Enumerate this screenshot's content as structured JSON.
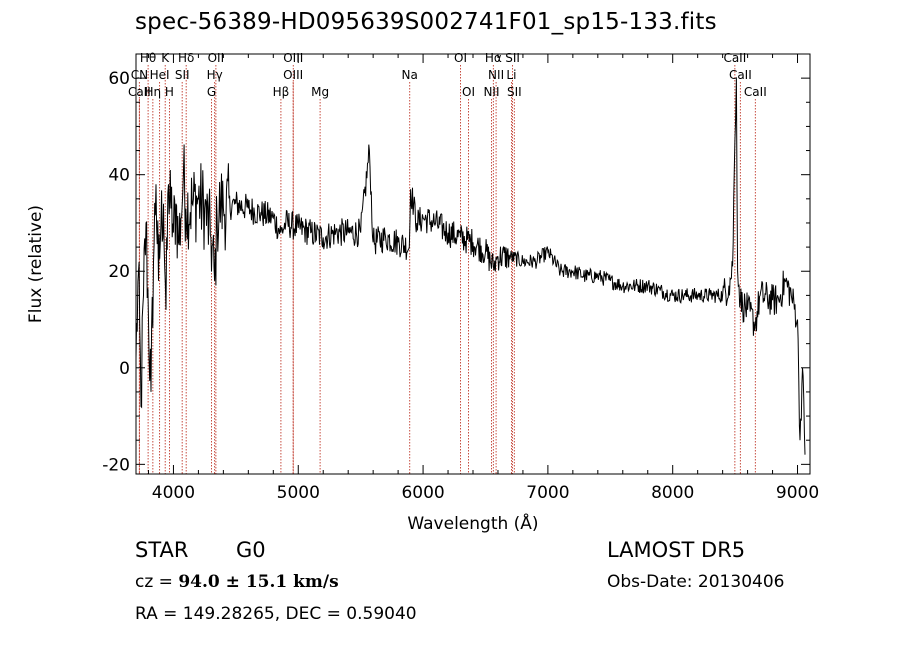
{
  "header": {
    "title": "spec-56389-HD095639S002741F01_sp15-133.fits"
  },
  "footer": {
    "object_class": "STAR",
    "subclass": "G0",
    "survey": "LAMOST DR5",
    "cz_prefix": "cz = ",
    "cz_value": "94.0 ± 15.1 km/s",
    "obs_date": "Obs-Date: 20130406",
    "radec": "RA = 149.28265, DEC =   0.59040"
  },
  "colors": {
    "line": "#000000",
    "marker": "#c0392b",
    "background": "#ffffff"
  },
  "chart_data": {
    "type": "line",
    "title": "spec-56389-HD095639S002741F01_sp15-133.fits",
    "xlabel": "Wavelength (Å)",
    "ylabel": "Flux (relative)",
    "xlim": [
      3700,
      9100
    ],
    "ylim": [
      -22,
      65
    ],
    "xticks": [
      4000,
      5000,
      6000,
      7000,
      8000,
      9000
    ],
    "yticks": [
      -20,
      0,
      20,
      40,
      60
    ],
    "grid": false,
    "series": [
      {
        "x": [
          3700,
          3720,
          3740,
          3760,
          3780,
          3800,
          3820,
          3840,
          3860,
          3880,
          3900,
          3920,
          3940,
          3960,
          3980,
          4000,
          4020,
          4040,
          4060,
          4080,
          4100,
          4150,
          4200,
          4250,
          4300,
          4330,
          4350,
          4380,
          4400,
          4500,
          4600,
          4700,
          4800,
          4861,
          4900,
          5000,
          5100,
          5200,
          5300,
          5400,
          5500,
          5570,
          5600,
          5700,
          5800,
          5890,
          5900,
          5950,
          6000,
          6100,
          6200,
          6300,
          6400,
          6500,
          6563,
          6600,
          6700,
          6800,
          6900,
          7000,
          7100,
          7200,
          7300,
          7400,
          7500,
          7600,
          7700,
          7800,
          7900,
          8000,
          8100,
          8200,
          8300,
          8400,
          8450,
          8480,
          8498,
          8510,
          8520,
          8542,
          8560,
          8600,
          8662,
          8700,
          8800,
          8850,
          8900,
          8950,
          9000,
          9020,
          9040,
          9060
        ],
        "y": [
          2,
          20,
          -8,
          15,
          30,
          10,
          -5,
          22,
          38,
          18,
          30,
          34,
          12,
          38,
          33,
          28,
          34,
          26,
          31,
          40,
          33,
          34,
          35,
          33,
          27,
          18,
          31,
          34,
          33,
          34,
          33,
          32,
          31,
          28,
          30,
          29,
          28,
          27,
          28,
          28,
          28,
          45,
          26,
          27,
          26,
          25,
          37,
          30,
          31,
          30,
          28,
          27,
          26,
          24,
          21,
          23,
          23,
          22,
          22,
          24,
          20,
          20,
          19,
          19,
          18,
          17,
          17,
          17,
          16,
          15,
          15,
          15,
          15,
          15,
          17,
          21,
          47,
          60,
          20,
          14,
          13,
          12,
          9,
          15,
          14,
          14,
          18,
          15,
          10,
          -15,
          0,
          -18
        ]
      }
    ],
    "lines": [
      {
        "label": "Hθ",
        "w": 3797,
        "row": 0
      },
      {
        "label": "K",
        "w": 3934,
        "row": 0
      },
      {
        "label": "Hδ",
        "w": 4102,
        "row": 0
      },
      {
        "label": "OII",
        "w": 4340,
        "row": 0
      },
      {
        "label": "OIII",
        "w": 4960,
        "row": 0
      },
      {
        "label": "OI",
        "w": 6300,
        "row": 0
      },
      {
        "label": "Hα",
        "w": 6563,
        "row": 0
      },
      {
        "label": "SII",
        "w": 6717,
        "row": 0
      },
      {
        "label": "CaII",
        "w": 8498,
        "row": 0
      },
      {
        "label": "CN",
        "w": 3727,
        "row": 1
      },
      {
        "label": "HeI",
        "w": 3889,
        "row": 1
      },
      {
        "label": "SII",
        "w": 4070,
        "row": 1
      },
      {
        "label": "Hγ",
        "w": 4330,
        "row": 1
      },
      {
        "label": "OIII",
        "w": 4959,
        "row": 1
      },
      {
        "label": "Na",
        "w": 5893,
        "row": 1
      },
      {
        "label": "NII",
        "w": 6585,
        "row": 1
      },
      {
        "label": "Li",
        "w": 6708,
        "row": 1
      },
      {
        "label": "CaII",
        "w": 8542,
        "row": 1
      },
      {
        "label": "CaII",
        "w": 3727,
        "row": 2
      },
      {
        "label": "Hη",
        "w": 3835,
        "row": 2
      },
      {
        "label": "H",
        "w": 3968,
        "row": 2
      },
      {
        "label": "G",
        "w": 4305,
        "row": 2
      },
      {
        "label": "Hβ",
        "w": 4861,
        "row": 2
      },
      {
        "label": "Mg",
        "w": 5175,
        "row": 2
      },
      {
        "label": "OI",
        "w": 6364,
        "row": 2
      },
      {
        "label": "NII",
        "w": 6548,
        "row": 2
      },
      {
        "label": "SII",
        "w": 6731,
        "row": 2
      },
      {
        "label": "CaII",
        "w": 8662,
        "row": 2
      }
    ]
  }
}
